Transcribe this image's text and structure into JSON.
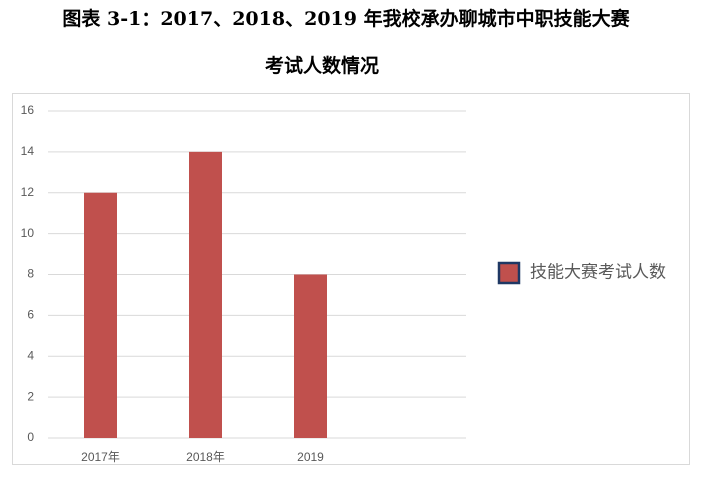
{
  "chart_data": {
    "type": "bar",
    "title": "图表 3-1：2017、2018、2019 年我校承办聊城市中职技能大赛",
    "subtitle": "考试人数情况",
    "categories": [
      "2017年",
      "2018年",
      "2019"
    ],
    "series": [
      {
        "name": "技能大赛考试人数",
        "color": "#c0504d",
        "values": [
          12,
          14,
          8
        ]
      }
    ],
    "ylim": [
      0,
      16
    ],
    "yticks": [
      0,
      2,
      4,
      6,
      8,
      10,
      12,
      14,
      16
    ],
    "grid": true,
    "legend": "right"
  }
}
